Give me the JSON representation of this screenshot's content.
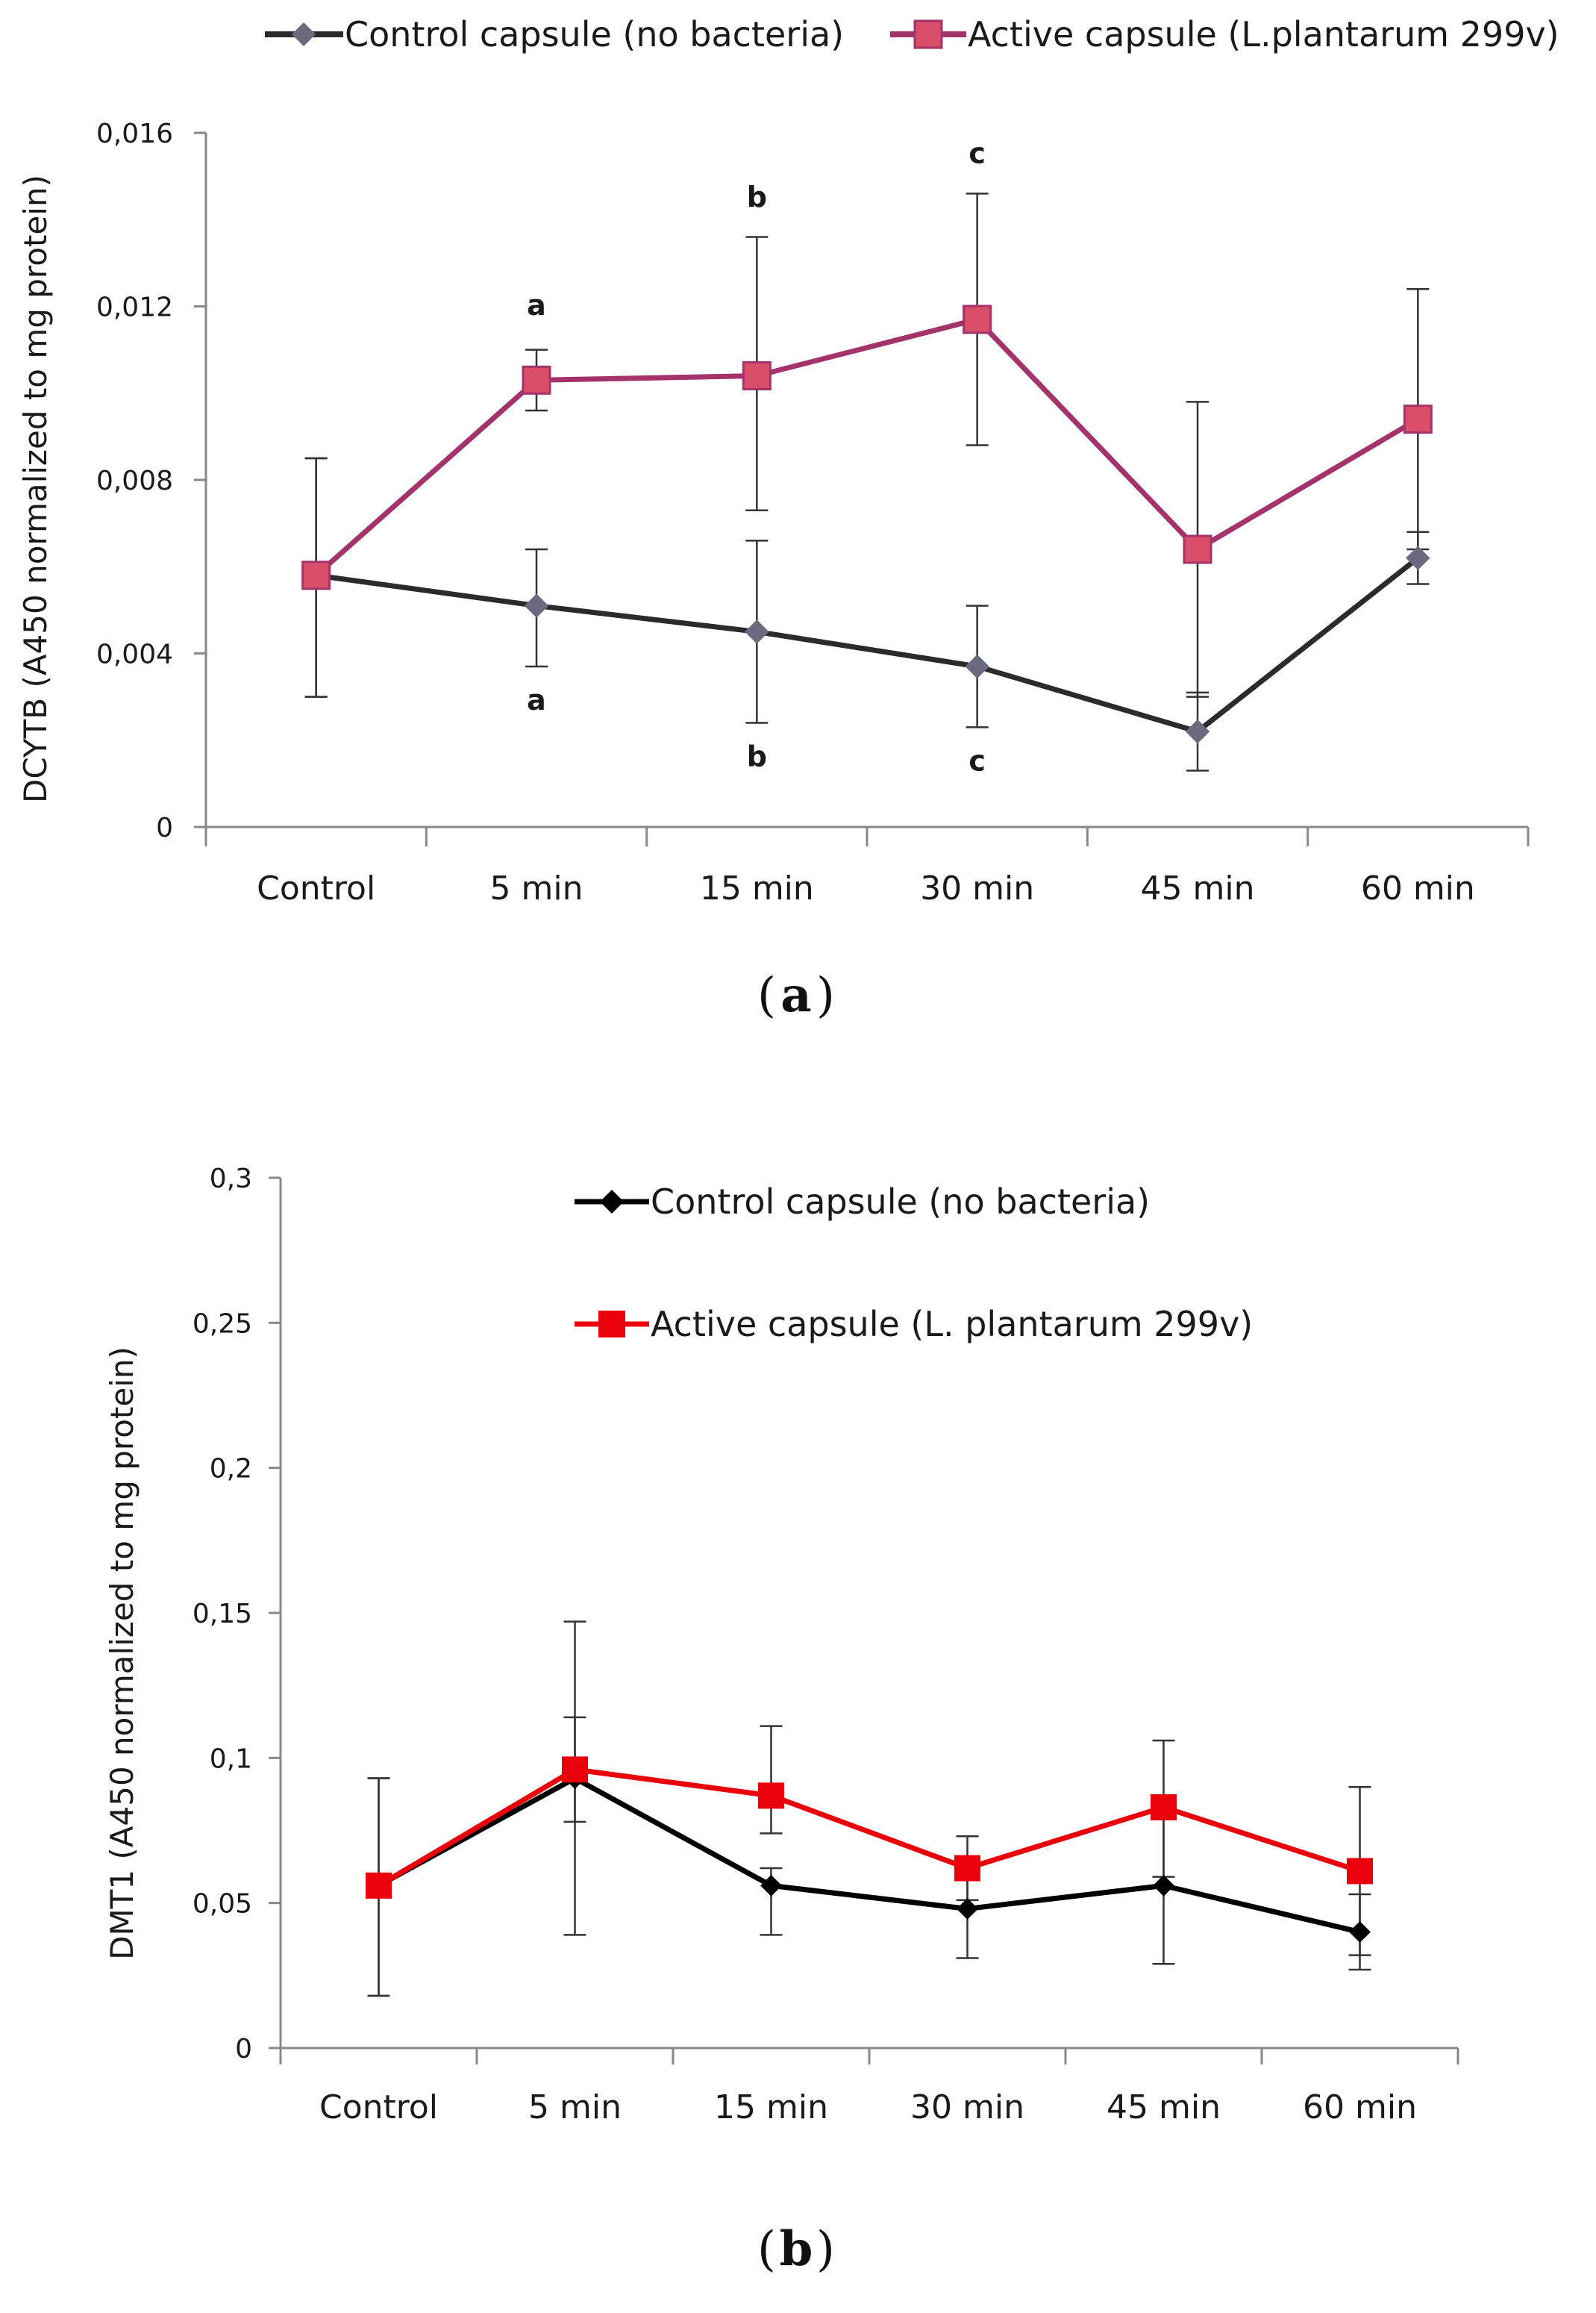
{
  "chart_data": [
    {
      "type": "line",
      "panel_label": "a",
      "ylabel": "DCYTB  (A450 normalized to mg protein)",
      "ylim": [
        0,
        0.016
      ],
      "ytick_labels": [
        "0",
        "0,004",
        "0,008",
        "0,012",
        "0,016"
      ],
      "ytick_values": [
        0,
        0.004,
        0.008,
        0.012,
        0.016
      ],
      "categories": [
        "Control",
        "5 min",
        "15 min",
        "30 min",
        "45 min",
        "60 min"
      ],
      "legend_position": "top",
      "series": [
        {
          "name": "Control capsule (no bacteria)",
          "marker": "diamond",
          "line_color": "#2b2b2b",
          "marker_color": "#6b6b80",
          "values": [
            0.0058,
            0.0051,
            0.0045,
            0.0037,
            0.0022,
            0.0062
          ],
          "err_low": [
            0.003,
            0.0037,
            0.0024,
            0.0023,
            0.0013,
            0.0056
          ],
          "err_high": [
            0.0085,
            0.0064,
            0.0066,
            0.0051,
            0.0031,
            0.0068
          ]
        },
        {
          "name": "Active capsule (L.plantarum 299v)",
          "marker": "square",
          "line_color": "#a3336a",
          "marker_color": "#d94f6a",
          "values": [
            0.0058,
            0.0103,
            0.0104,
            0.0117,
            0.0064,
            0.0094
          ],
          "err_low": [
            0.003,
            0.0096,
            0.0073,
            0.0088,
            0.003,
            0.0064
          ],
          "err_high": [
            0.0085,
            0.011,
            0.0136,
            0.0146,
            0.0098,
            0.0124
          ]
        }
      ],
      "annotations": [
        {
          "text": "a",
          "category_index": 1,
          "value": 0.0118
        },
        {
          "text": "b",
          "category_index": 2,
          "value": 0.0143
        },
        {
          "text": "c",
          "category_index": 3,
          "value": 0.0153
        },
        {
          "text": "a",
          "category_index": 1,
          "value": 0.0027
        },
        {
          "text": "b",
          "category_index": 2,
          "value": 0.0014
        },
        {
          "text": "c",
          "category_index": 3,
          "value": 0.0013
        }
      ]
    },
    {
      "type": "line",
      "panel_label": "b",
      "ylabel": "DMT1 (A450 normalized to mg protein)",
      "ylim": [
        0,
        0.3
      ],
      "ytick_labels": [
        "0",
        "0,05",
        "0,1",
        "0,15",
        "0,2",
        "0,25",
        "0,3"
      ],
      "ytick_values": [
        0,
        0.05,
        0.1,
        0.15,
        0.2,
        0.25,
        0.3
      ],
      "categories": [
        "Control",
        "5 min",
        "15 min",
        "30 min",
        "45 min",
        "60 min"
      ],
      "legend_position": "top-center",
      "series": [
        {
          "name": "Control capsule (no bacteria)",
          "marker": "diamond",
          "line_color": "#000000",
          "marker_color": "#000000",
          "values": [
            0.056,
            0.093,
            0.056,
            0.048,
            0.056,
            0.04
          ],
          "err_low": [
            0.018,
            0.039,
            0.039,
            0.031,
            0.029,
            0.027
          ],
          "err_high": [
            0.093,
            0.147,
            0.062,
            0.061,
            0.082,
            0.053
          ]
        },
        {
          "name": "Active capsule (L. plantarum 299v)",
          "marker": "square",
          "line_color": "#e8000b",
          "marker_color": "#e8000b",
          "values": [
            0.056,
            0.096,
            0.087,
            0.062,
            0.083,
            0.061
          ],
          "err_low": [
            0.018,
            0.078,
            0.074,
            0.051,
            0.059,
            0.032
          ],
          "err_high": [
            0.093,
            0.114,
            0.111,
            0.073,
            0.106,
            0.09
          ]
        }
      ],
      "annotations": []
    }
  ]
}
